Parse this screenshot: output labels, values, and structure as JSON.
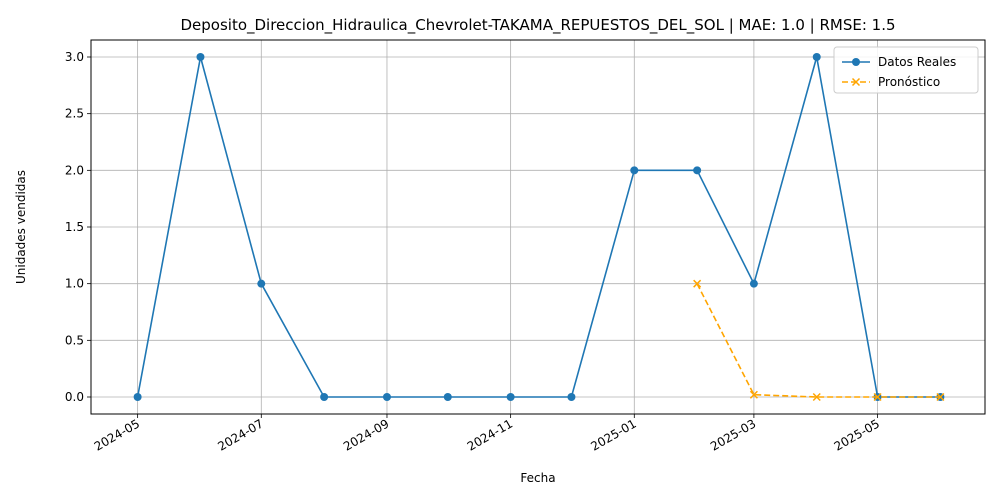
{
  "chart_data": {
    "type": "line",
    "title": "Deposito_Direccion_Hidraulica_Chevrolet-TAKAMA_REPUESTOS_DEL_SOL | MAE: 1.0 | RMSE: 1.5",
    "xlabel": "Fecha",
    "ylabel": "Unidades vendidas",
    "ylim": [
      -0.15,
      3.15
    ],
    "xlim": [
      "2024-04-08",
      "2025-06-23"
    ],
    "grid": true,
    "legend_position": "top-right",
    "x_ticks": [
      "2024-05",
      "2024-07",
      "2024-09",
      "2024-11",
      "2025-01",
      "2025-03",
      "2025-05"
    ],
    "y_ticks": [
      "0.0",
      "0.5",
      "1.0",
      "1.5",
      "2.0",
      "2.5",
      "3.0"
    ],
    "series": [
      {
        "name": "Datos Reales",
        "color": "#1f77b4",
        "marker": "circle",
        "style": "solid",
        "x": [
          "2024-05-01",
          "2024-06-01",
          "2024-07-01",
          "2024-08-01",
          "2024-09-01",
          "2024-10-01",
          "2024-11-01",
          "2024-12-01",
          "2025-01-01",
          "2025-02-01",
          "2025-03-01",
          "2025-04-01",
          "2025-05-01",
          "2025-06-01"
        ],
        "values": [
          0,
          3,
          1,
          0,
          0,
          0,
          0,
          0,
          2,
          2,
          1,
          3,
          0,
          0
        ]
      },
      {
        "name": "Pronóstico",
        "color": "#ffa500",
        "marker": "x",
        "style": "dashed",
        "x": [
          "2025-02-01",
          "2025-03-01",
          "2025-04-01",
          "2025-05-01",
          "2025-06-01"
        ],
        "values": [
          1.0,
          0.02,
          0.0,
          0.0,
          0.0
        ]
      }
    ]
  }
}
